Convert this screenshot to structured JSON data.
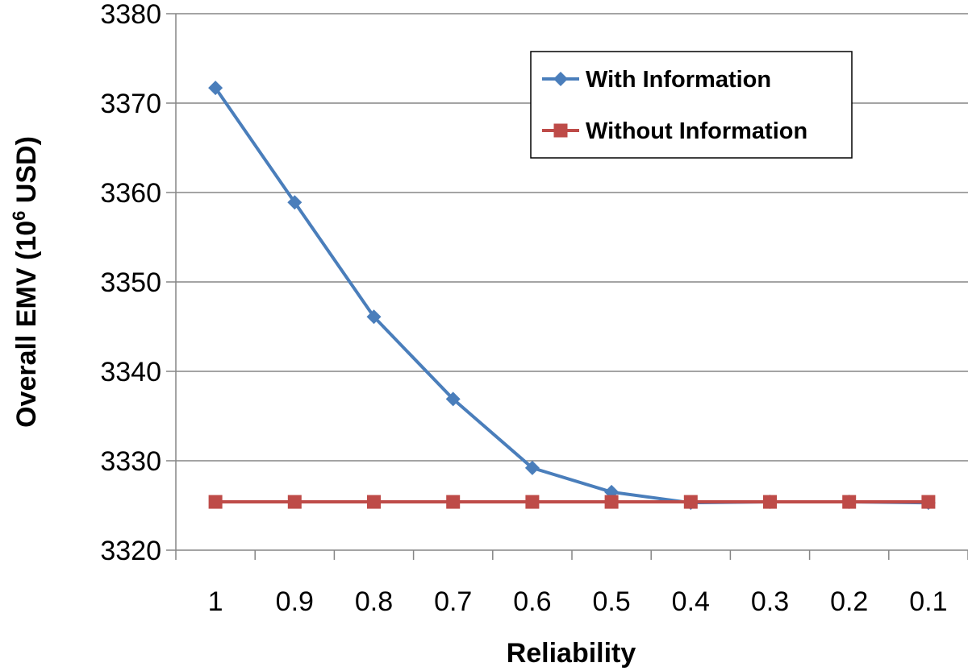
{
  "chart_data": {
    "type": "line",
    "categories": [
      "1",
      "0.9",
      "0.8",
      "0.7",
      "0.6",
      "0.5",
      "0.4",
      "0.3",
      "0.2",
      "0.1"
    ],
    "series": [
      {
        "name": "With Information",
        "color": "#4a7ebb",
        "marker": "diamond",
        "values": [
          3371.7,
          3358.9,
          3346.1,
          3336.9,
          3329.2,
          3326.5,
          3325.3,
          3325.4,
          3325.4,
          3325.3
        ]
      },
      {
        "name": "Without Information",
        "color": "#be4b48",
        "marker": "square",
        "values": [
          3325.4,
          3325.4,
          3325.4,
          3325.4,
          3325.4,
          3325.4,
          3325.4,
          3325.4,
          3325.4,
          3325.4
        ]
      }
    ],
    "xlabel": "Reliability",
    "ylabel_main": "Overall EMV (10",
    "ylabel_sup": "6",
    "ylabel_tail": " USD)",
    "ylim": [
      3320,
      3380
    ],
    "yticks": [
      "3320",
      "3330",
      "3340",
      "3350",
      "3360",
      "3370",
      "3380"
    ],
    "grid": "horizontal",
    "legend_position": "top-right"
  }
}
